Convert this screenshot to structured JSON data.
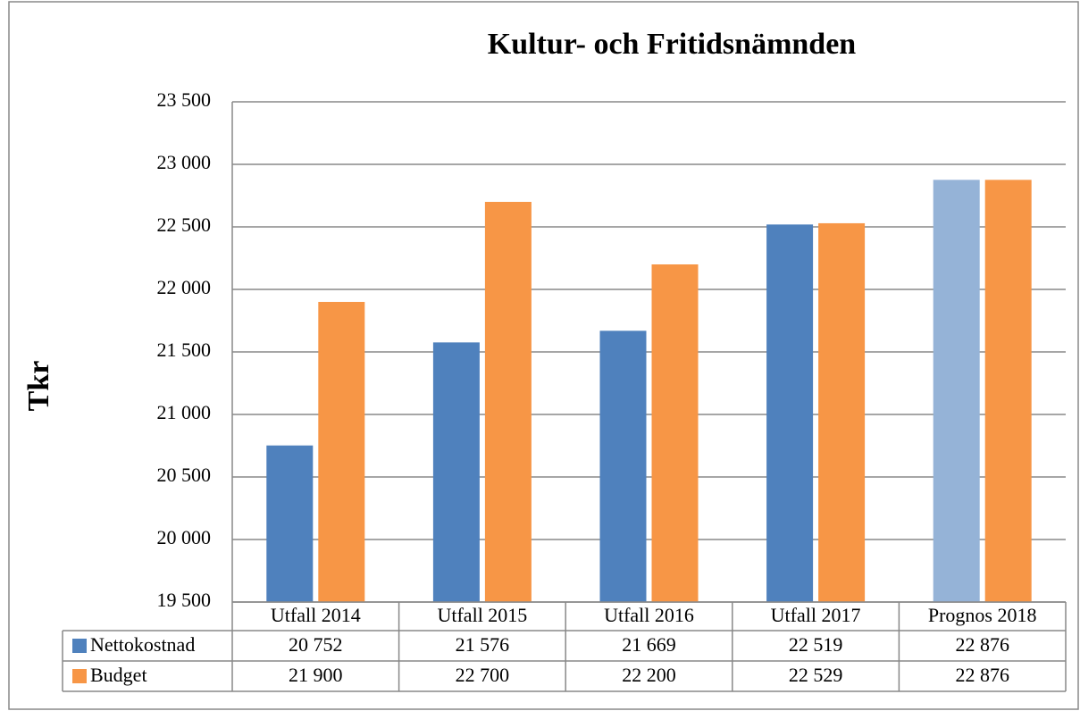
{
  "chart_data": {
    "type": "bar",
    "title": "Kultur- och Fritidsnämnden",
    "y_label": "Tkr",
    "categories": [
      "Utfall 2014",
      "Utfall 2015",
      "Utfall 2016",
      "Utfall 2017",
      "Prognos 2018"
    ],
    "series": [
      {
        "name": "Nettokostnad",
        "color": "#4f81bd",
        "colors": [
          "#4f81bd",
          "#4f81bd",
          "#4f81bd",
          "#4f81bd",
          "#95b3d7"
        ],
        "values": [
          20752,
          21576,
          21669,
          22519,
          22876
        ],
        "value_labels": [
          "20 752",
          "21 576",
          "21 669",
          "22 519",
          "22 876"
        ]
      },
      {
        "name": "Budget",
        "color": "#f79646",
        "values": [
          21900,
          22700,
          22200,
          22529,
          22876
        ],
        "value_labels": [
          "21 900",
          "22 700",
          "22 200",
          "22 529",
          "22 876"
        ]
      }
    ],
    "ylim": [
      19500,
      23500
    ],
    "yticks": [
      {
        "value": 19500,
        "label": "19 500"
      },
      {
        "value": 20000,
        "label": "20 000"
      },
      {
        "value": 20500,
        "label": "20 500"
      },
      {
        "value": 21000,
        "label": "21 000"
      },
      {
        "value": 21500,
        "label": "21 500"
      },
      {
        "value": 22000,
        "label": "22 000"
      },
      {
        "value": 22500,
        "label": "22 500"
      },
      {
        "value": 23000,
        "label": "23 000"
      },
      {
        "value": 23500,
        "label": "23 500"
      }
    ],
    "grid": true,
    "legend": "data-table"
  }
}
